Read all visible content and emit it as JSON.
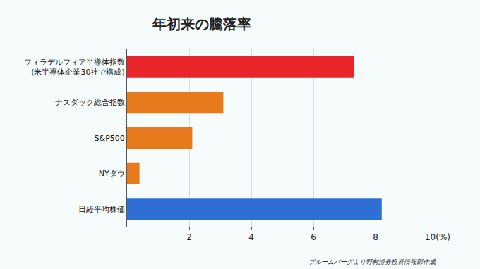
{
  "chart_data": {
    "type": "bar",
    "orientation": "horizontal",
    "title": "年初来の騰落率",
    "categories": [
      "フィラデルフィア半導体指数\n(米半導体企業30社で構成)",
      "ナスダック総合指数",
      "S&P500",
      "NYダウ",
      "日経平均株価"
    ],
    "values": [
      7.3,
      3.1,
      2.1,
      0.4,
      8.2
    ],
    "colors": [
      "#e8262a",
      "#e87a1e",
      "#e87a1e",
      "#e87a1e",
      "#2f6fd4"
    ],
    "xlim": [
      0,
      10
    ],
    "xticks": [
      2,
      4,
      6,
      8,
      {
        "value": 10,
        "label": "10(%)"
      }
    ],
    "grid": true,
    "annotations": [
      "ブルームバーグより野村證券投資情報部作成"
    ]
  }
}
